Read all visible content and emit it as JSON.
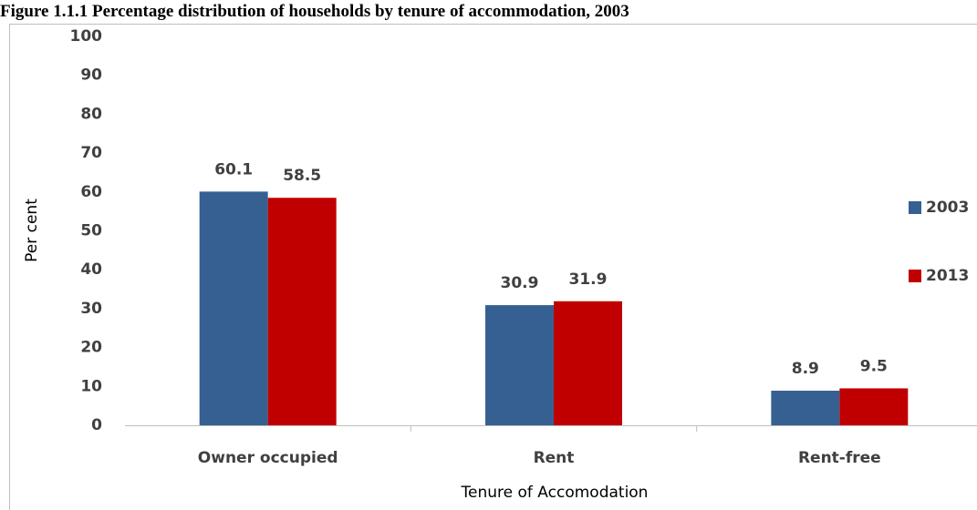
{
  "chart_data": {
    "type": "bar",
    "title": "Figure 1.1.1 Percentage distribution of households by tenure of accommodation, 2003",
    "y_label": "Per cent",
    "x_label": "Tenure of Accomodation",
    "categories": [
      "Owner occupied",
      "Rent",
      "Rent-free"
    ],
    "series": [
      {
        "name": "2003",
        "color": "#376092",
        "values": [
          60.1,
          30.9,
          8.9
        ]
      },
      {
        "name": "2013",
        "color": "#c00000",
        "values": [
          58.5,
          31.9,
          9.5
        ]
      }
    ],
    "ylim": [
      0,
      100
    ],
    "yticks": [
      0,
      10,
      20,
      30,
      40,
      50,
      60,
      70,
      80,
      90,
      100
    ],
    "grid": false,
    "legend": "right"
  }
}
